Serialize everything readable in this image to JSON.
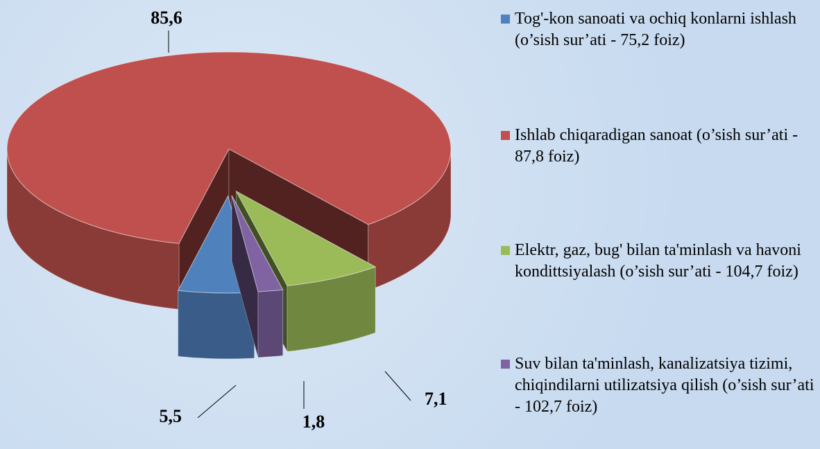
{
  "chart_data": {
    "type": "pie",
    "categories": [
      "Tog'-kon sanoati va ochiq konlarni ishlash (o’sish sur’ati - 75,2 foiz)",
      "Ishlab chiqaradigan sanoat (o’sish sur’ati - 87,8 foiz)",
      "Elektr, gaz, bug' bilan ta'minlash va havoni kondittsiyalash (o’sish sur’ati - 104,7 foiz)",
      "Suv bilan ta'minlash, kanalizatsiya tizimi, chiqindilarni utilizatsiya qilish (o’sish sur’ati - 102,7 foiz)"
    ],
    "values": [
      5.5,
      85.6,
      7.1,
      1.8
    ],
    "value_labels": [
      "5,5",
      "85,6",
      "7,1",
      "1,8"
    ],
    "colors": [
      "#4f81bd",
      "#c0504d",
      "#9bbb59",
      "#8064a2"
    ],
    "legend": "right"
  }
}
